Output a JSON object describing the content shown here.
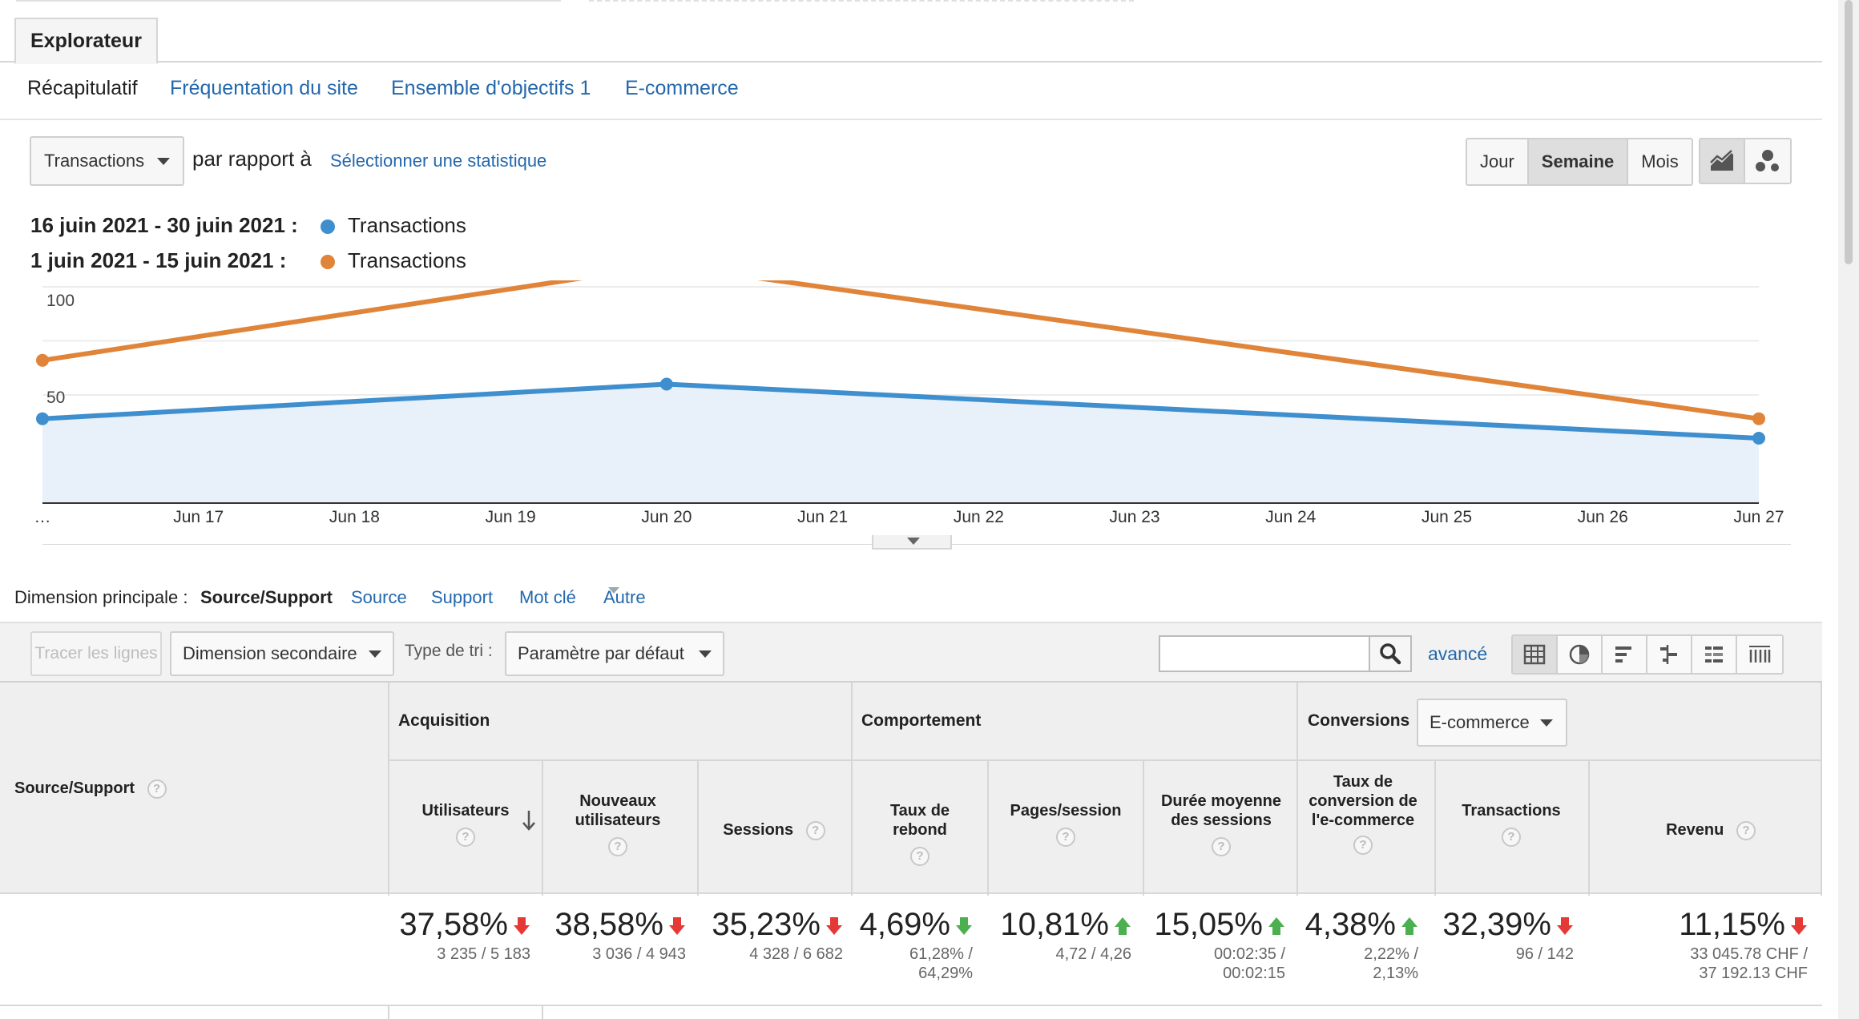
{
  "tabs": {
    "explorer": "Explorateur"
  },
  "subtabs": [
    {
      "label": "Récapitulatif",
      "active": true
    },
    {
      "label": "Fréquentation du site",
      "active": false
    },
    {
      "label": "Ensemble d'objectifs 1",
      "active": false
    },
    {
      "label": "E-commerce",
      "active": false
    }
  ],
  "controls": {
    "metric": "Transactions",
    "compare_text": "par rapport à",
    "select_stat": "Sélectionner une statistique",
    "periods": [
      "Jour",
      "Semaine",
      "Mois"
    ],
    "active_period": "Semaine",
    "chart_types": [
      "line-chart-icon",
      "motion-chart-icon"
    ]
  },
  "legend": [
    {
      "range": "16 juin 2021 - 30 juin 2021 :",
      "series": "Transactions",
      "color": "#3f8fce"
    },
    {
      "range": "1 juin 2021 - 15 juin 2021 :",
      "series": "Transactions",
      "color": "#e0843a"
    }
  ],
  "chart_data": {
    "type": "line",
    "x": [
      "…",
      "Jun 17",
      "Jun 18",
      "Jun 19",
      "Jun 20",
      "Jun 21",
      "Jun 22",
      "Jun 23",
      "Jun 24",
      "Jun 25",
      "Jun 26",
      "Jun 27"
    ],
    "ytick_labels": [
      "50",
      "100"
    ],
    "ylim": [
      0,
      100
    ],
    "series": [
      {
        "name": "Transactions",
        "period": "16 juin 2021 - 30 juin 2021",
        "color": "#3f8fce",
        "points": [
          [
            0,
            39
          ],
          [
            4,
            55
          ],
          [
            11,
            30
          ]
        ]
      },
      {
        "name": "Transactions",
        "period": "1 juin 2021 - 15 juin 2021",
        "color": "#e0843a",
        "points": [
          [
            0,
            66
          ],
          [
            4,
            110
          ],
          [
            11,
            39
          ]
        ]
      }
    ],
    "grid": true
  },
  "dimension": {
    "label": "Dimension principale :",
    "current": "Source/Support",
    "options": [
      "Source",
      "Support",
      "Mot clé",
      "Autre"
    ]
  },
  "toolbar": {
    "tracer": "Tracer les lignes",
    "secondary": "Dimension secondaire",
    "sort_label": "Type de tri :",
    "sort_value": "Paramètre par défaut",
    "search_placeholder": "",
    "advanced": "avancé",
    "views": [
      "table-view-icon",
      "pie-view-icon",
      "bar-view-icon",
      "comparison-view-icon",
      "pivot-view-icon",
      "term-cloud-icon"
    ]
  },
  "table": {
    "dim_header": "Source/Support",
    "groups": {
      "acquisition": "Acquisition",
      "behavior": "Comportement",
      "conversions": "Conversions",
      "conversions_select": "E-commerce"
    },
    "columns": [
      "Utilisateurs",
      "Nouveaux utilisateurs",
      "Sessions",
      "Taux de rebond",
      "Pages/session",
      "Durée moyenne des sessions",
      "Taux de conversion de l'e-commerce",
      "Transactions",
      "Revenu"
    ],
    "totals": [
      {
        "pct": "37,58%",
        "dir": "down",
        "sub": [
          "3 235 / 5 183"
        ]
      },
      {
        "pct": "38,58%",
        "dir": "down",
        "sub": [
          "3 036 / 4 943"
        ]
      },
      {
        "pct": "35,23%",
        "dir": "down",
        "sub": [
          "4 328 / 6 682"
        ]
      },
      {
        "pct": "4,69%",
        "dir": "down-good",
        "sub": [
          "61,28% /",
          "64,29%"
        ]
      },
      {
        "pct": "10,81%",
        "dir": "up",
        "sub": [
          "4,72 / 4,26"
        ]
      },
      {
        "pct": "15,05%",
        "dir": "up",
        "sub": [
          "00:02:35 /",
          "00:02:15"
        ]
      },
      {
        "pct": "4,38%",
        "dir": "up",
        "sub": [
          "2,22% /",
          "2,13%"
        ]
      },
      {
        "pct": "32,39%",
        "dir": "down",
        "sub": [
          "96 / 142"
        ]
      },
      {
        "pct": "11,15%",
        "dir": "down",
        "sub": [
          "33 045.78 CHF /",
          "37 192.13 CHF"
        ]
      }
    ]
  }
}
